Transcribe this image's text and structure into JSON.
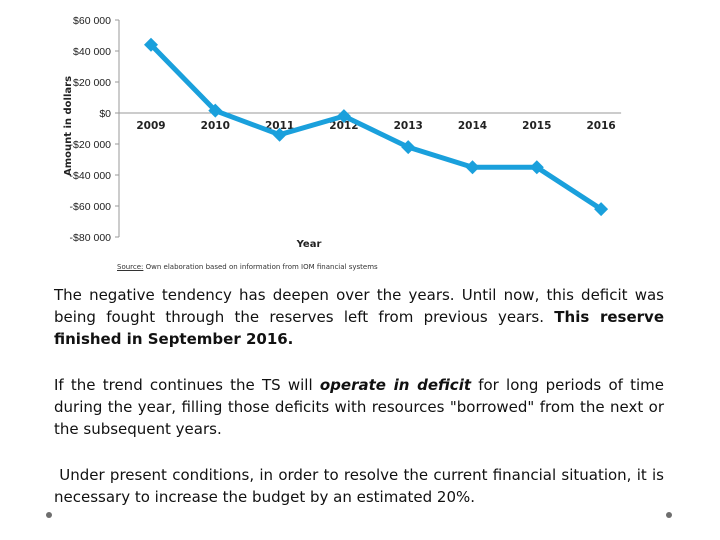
{
  "chart_data": {
    "type": "line",
    "categories": [
      "2009",
      "2010",
      "2011",
      "2012",
      "2013",
      "2014",
      "2015",
      "2016"
    ],
    "series": [
      {
        "name": "Amount",
        "values": [
          44000,
          1500,
          -14000,
          -2000,
          -22000,
          -35000,
          -35000,
          -62000
        ]
      }
    ],
    "y_ticks": [
      60000,
      40000,
      20000,
      0,
      -20000,
      -40000,
      -60000,
      -80000
    ],
    "y_tick_labels": [
      "$60 000",
      "$40 000",
      "$20 000",
      "$0",
      "-$20 000",
      "-$40 000",
      "-$60 000",
      "-$80 000"
    ],
    "ylim": [
      -80000,
      60000
    ],
    "xlabel": "Year",
    "ylabel": "Amount in dollars",
    "grid": false,
    "line_color": "#1aa0dc",
    "marker": "diamond"
  },
  "source": {
    "label": "Source:",
    "text": " Own elaboration based on information from IOM financial systems"
  },
  "paragraphs": {
    "p1_text": "The negative tendency has deepen over the years. Until now, this deficit was being fought through the reserves left from previous years. ",
    "p1_bold": "This reserve finished in September 2016.",
    "p2_before": "If the trend continues the TS will ",
    "p2_emph": "operate in deficit",
    "p2_after": " for long periods of time during the year, filling those deficits with resources \"borrowed\" from the next or the subsequent years.",
    "p3_text": "Under present conditions, in order to resolve the current financial situation, it is necessary to increase the budget by an estimated 20%."
  }
}
